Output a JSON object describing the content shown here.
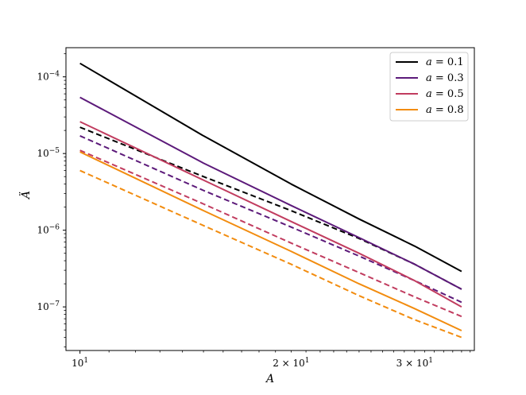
{
  "chart_data": {
    "type": "line",
    "title": "",
    "xlabel": "A",
    "ylabel": "Ä",
    "xscale": "log",
    "yscale": "log",
    "xlim": [
      9.55,
      36.5
    ],
    "ylim": [
      2.7e-08,
      0.00024
    ],
    "grid": false,
    "legend_position": "top-right",
    "x_major_ticks": [
      {
        "value": 10,
        "label_base": "10",
        "label_exp": "1"
      }
    ],
    "x_minor_ticks": [
      {
        "value": 20,
        "label_coef": "2 × 10",
        "label_exp": "1"
      },
      {
        "value": 30,
        "label_coef": "3 × 10",
        "label_exp": "1"
      }
    ],
    "y_major_ticks": [
      {
        "value": 0.0001,
        "label_base": "10",
        "label_exp": "−4"
      },
      {
        "value": 1e-05,
        "label_base": "10",
        "label_exp": "−5"
      },
      {
        "value": 1e-06,
        "label_base": "10",
        "label_exp": "−6"
      },
      {
        "value": 1e-07,
        "label_base": "10",
        "label_exp": "−7"
      }
    ],
    "series": [
      {
        "name": "a = 0.1",
        "legend_var": "a",
        "legend_value": "0.1",
        "color": "#000000",
        "dash": false,
        "x": [
          10,
          15,
          20,
          25,
          30,
          35
        ],
        "y": [
          0.00015,
          1.7e-05,
          4e-06,
          1.4e-06,
          6.2e-07,
          2.9e-07
        ]
      },
      {
        "name": "",
        "color": "#000000",
        "dash": true,
        "x": [
          10,
          15,
          20,
          25,
          30,
          35
        ],
        "y": [
          2.2e-05,
          5e-06,
          1.8e-06,
          7.8e-07,
          3.6e-07,
          1.7e-07
        ]
      },
      {
        "name": "a = 0.3",
        "legend_var": "a",
        "legend_value": "0.3",
        "color": "#5c1a7a",
        "dash": false,
        "x": [
          10,
          15,
          20,
          25,
          30,
          35
        ],
        "y": [
          5.4e-05,
          7.5e-06,
          2.1e-06,
          8e-07,
          3.6e-07,
          1.7e-07
        ]
      },
      {
        "name": "",
        "color": "#5c1a7a",
        "dash": true,
        "x": [
          10,
          15,
          20,
          25,
          30,
          35
        ],
        "y": [
          1.7e-05,
          3.3e-06,
          1.1e-06,
          4.6e-07,
          2.2e-07,
          1.15e-07
        ]
      },
      {
        "name": "a = 0.5",
        "legend_var": "a",
        "legend_value": "0.5",
        "color": "#c13c5f",
        "dash": false,
        "x": [
          10,
          15,
          20,
          25,
          30,
          35
        ],
        "y": [
          2.6e-05,
          4.5e-06,
          1.3e-06,
          5e-07,
          2.2e-07,
          1e-07
        ]
      },
      {
        "name": "",
        "color": "#c13c5f",
        "dash": true,
        "x": [
          10,
          15,
          20,
          25,
          30,
          35
        ],
        "y": [
          1.1e-05,
          2.2e-06,
          6.8e-07,
          2.8e-07,
          1.35e-07,
          7.5e-08
        ]
      },
      {
        "name": "a = 0.8",
        "legend_var": "a",
        "legend_value": "0.8",
        "color": "#f28c0f",
        "dash": false,
        "x": [
          10,
          15,
          20,
          25,
          30,
          35
        ],
        "y": [
          1.05e-05,
          1.8e-06,
          5.3e-07,
          2e-07,
          9.5e-08,
          4.9e-08
        ]
      },
      {
        "name": "",
        "color": "#f28c0f",
        "dash": true,
        "x": [
          10,
          15,
          20,
          25,
          30,
          35
        ],
        "y": [
          6e-06,
          1.15e-06,
          3.6e-07,
          1.4e-07,
          6.8e-08,
          4e-08
        ]
      }
    ]
  }
}
